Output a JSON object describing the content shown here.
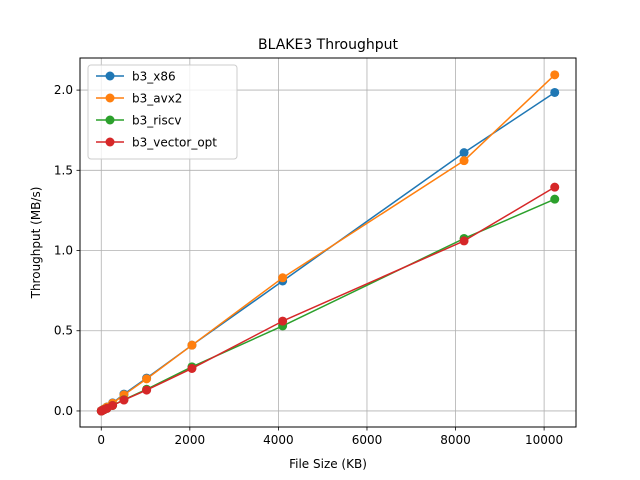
{
  "chart_data": {
    "type": "line",
    "title": "BLAKE3 Throughput",
    "xlabel": "File Size (KB)",
    "ylabel": "Throughput (MB/s)",
    "xlim": [
      -480,
      10720
    ],
    "ylim": [
      -0.1,
      2.2
    ],
    "x_ticks": [
      0,
      2000,
      4000,
      6000,
      8000,
      10000
    ],
    "y_ticks": [
      0.0,
      0.5,
      1.0,
      1.5,
      2.0
    ],
    "x_tick_labels": [
      "0",
      "2000",
      "4000",
      "6000",
      "8000",
      "10000"
    ],
    "y_tick_labels": [
      "0.0",
      "0.5",
      "1.0",
      "1.5",
      "2.0"
    ],
    "grid": true,
    "legend_position": "top-left",
    "x": [
      1,
      2,
      4,
      8,
      16,
      32,
      64,
      128,
      256,
      512,
      1024,
      2048,
      4096,
      8192,
      10240
    ],
    "series": [
      {
        "name": "b3_x86",
        "color": "#1f77b4",
        "values": [
          0.0002,
          0.0004,
          0.0008,
          0.0016,
          0.003,
          0.006,
          0.012,
          0.025,
          0.05,
          0.105,
          0.205,
          0.41,
          0.81,
          1.61,
          1.985
        ]
      },
      {
        "name": "b3_avx2",
        "color": "#ff7f0e",
        "values": [
          0.0002,
          0.0004,
          0.0008,
          0.0016,
          0.003,
          0.006,
          0.012,
          0.024,
          0.048,
          0.1,
          0.2,
          0.41,
          0.83,
          1.56,
          2.095
        ]
      },
      {
        "name": "b3_riscv",
        "color": "#2ca02c",
        "values": [
          0.0001,
          0.0003,
          0.0005,
          0.001,
          0.002,
          0.004,
          0.008,
          0.016,
          0.034,
          0.07,
          0.135,
          0.275,
          0.53,
          1.075,
          1.32
        ]
      },
      {
        "name": "b3_vector_opt",
        "color": "#d62728",
        "values": [
          0.0001,
          0.0003,
          0.0005,
          0.001,
          0.002,
          0.004,
          0.008,
          0.016,
          0.034,
          0.068,
          0.13,
          0.265,
          0.56,
          1.06,
          1.395
        ]
      }
    ]
  }
}
